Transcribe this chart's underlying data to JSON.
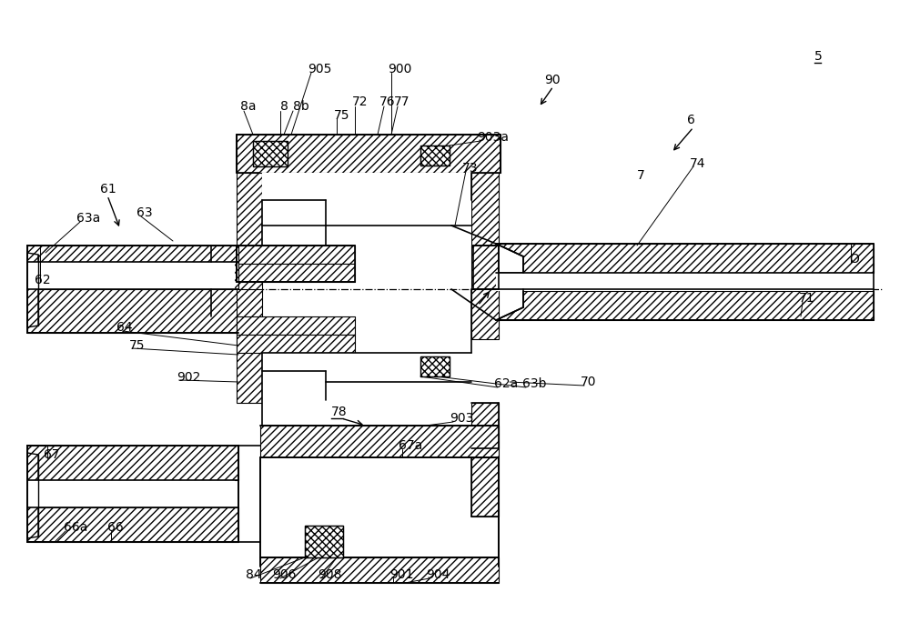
{
  "bg_color": "#ffffff",
  "line_color": "#000000",
  "fig_width": 10.0,
  "fig_height": 7.06,
  "dpi": 100,
  "labels": [
    [
      "5",
      895,
      62,
      true
    ],
    [
      "6",
      755,
      132,
      false
    ],
    [
      "7",
      700,
      193,
      false
    ],
    [
      "8",
      308,
      117,
      false
    ],
    [
      "8a",
      264,
      117,
      false
    ],
    [
      "8b",
      322,
      117,
      false
    ],
    [
      "61",
      110,
      208,
      false
    ],
    [
      "62",
      38,
      308,
      false
    ],
    [
      "62a",
      543,
      422,
      false
    ],
    [
      "63",
      150,
      234,
      false
    ],
    [
      "63a",
      84,
      240,
      false
    ],
    [
      "63b",
      574,
      422,
      false
    ],
    [
      "64",
      128,
      360,
      false
    ],
    [
      "66",
      118,
      580,
      false
    ],
    [
      "66a",
      70,
      580,
      false
    ],
    [
      "67",
      48,
      500,
      false
    ],
    [
      "67a",
      438,
      490,
      false
    ],
    [
      "70",
      638,
      420,
      false
    ],
    [
      "71",
      878,
      328,
      false
    ],
    [
      "72",
      387,
      112,
      false
    ],
    [
      "73",
      508,
      185,
      false
    ],
    [
      "74",
      758,
      180,
      false
    ],
    [
      "75",
      367,
      127,
      false
    ],
    [
      "75",
      142,
      380,
      false
    ],
    [
      "76",
      417,
      112,
      false
    ],
    [
      "77",
      433,
      112,
      false
    ],
    [
      "78",
      364,
      453,
      true
    ],
    [
      "84",
      270,
      632,
      false
    ],
    [
      "90",
      598,
      88,
      false
    ],
    [
      "900",
      426,
      76,
      false
    ],
    [
      "901",
      428,
      632,
      false
    ],
    [
      "902",
      194,
      415,
      false
    ],
    [
      "903",
      494,
      460,
      false
    ],
    [
      "903a",
      524,
      151,
      false
    ],
    [
      "904",
      468,
      632,
      false
    ],
    [
      "905",
      338,
      76,
      false
    ],
    [
      "906",
      299,
      632,
      false
    ],
    [
      "908",
      349,
      632,
      false
    ],
    [
      "O",
      933,
      285,
      false
    ]
  ]
}
